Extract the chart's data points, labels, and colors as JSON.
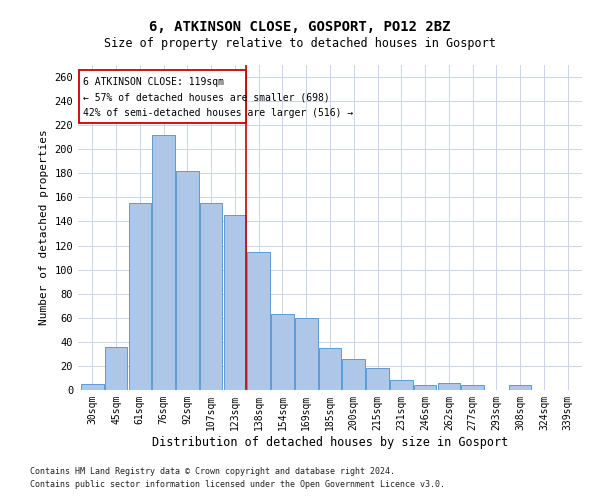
{
  "title1": "6, ATKINSON CLOSE, GOSPORT, PO12 2BZ",
  "title2": "Size of property relative to detached houses in Gosport",
  "xlabel": "Distribution of detached houses by size in Gosport",
  "ylabel": "Number of detached properties",
  "categories": [
    "30sqm",
    "45sqm",
    "61sqm",
    "76sqm",
    "92sqm",
    "107sqm",
    "123sqm",
    "138sqm",
    "154sqm",
    "169sqm",
    "185sqm",
    "200sqm",
    "215sqm",
    "231sqm",
    "246sqm",
    "262sqm",
    "277sqm",
    "293sqm",
    "308sqm",
    "324sqm",
    "339sqm"
  ],
  "values": [
    5,
    36,
    155,
    212,
    182,
    155,
    145,
    115,
    63,
    60,
    35,
    26,
    18,
    8,
    4,
    6,
    4,
    0,
    4,
    0,
    0
  ],
  "bar_color": "#aec6e8",
  "bar_edge_color": "#5b9bd5",
  "vline_bar_index": 6,
  "vline_color": "#cc0000",
  "annotation_line1": "6 ATKINSON CLOSE: 119sqm",
  "annotation_line2": "← 57% of detached houses are smaller (698)",
  "annotation_line3": "42% of semi-detached houses are larger (516) →",
  "annotation_box_color": "#cc0000",
  "ylim": [
    0,
    270
  ],
  "yticks": [
    0,
    20,
    40,
    60,
    80,
    100,
    120,
    140,
    160,
    180,
    200,
    220,
    240,
    260
  ],
  "footnote1": "Contains HM Land Registry data © Crown copyright and database right 2024.",
  "footnote2": "Contains public sector information licensed under the Open Government Licence v3.0.",
  "background_color": "#ffffff",
  "grid_color": "#c8d4e8"
}
